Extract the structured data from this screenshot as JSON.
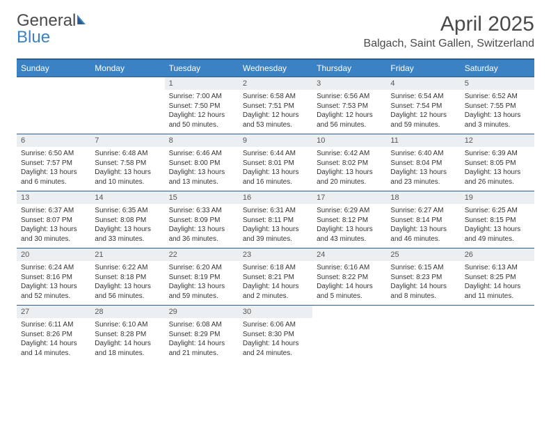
{
  "brand": {
    "part1": "General",
    "part2": "Blue"
  },
  "title": "April 2025",
  "location": "Balgach, Saint Gallen, Switzerland",
  "colors": {
    "header_bg": "#3b82c4",
    "header_text": "#ffffff",
    "border": "#2c5a8a",
    "daynum_bg": "#eceff1",
    "text": "#4a4a4a"
  },
  "fonts": {
    "title_size": 30,
    "location_size": 16,
    "dayhead_size": 12,
    "daynum_size": 11,
    "detail_size": 10
  },
  "day_names": [
    "Sunday",
    "Monday",
    "Tuesday",
    "Wednesday",
    "Thursday",
    "Friday",
    "Saturday"
  ],
  "weeks": [
    [
      {
        "day": "",
        "sunrise": "",
        "sunset": "",
        "daylight": "",
        "empty": true
      },
      {
        "day": "",
        "sunrise": "",
        "sunset": "",
        "daylight": "",
        "empty": true
      },
      {
        "day": "1",
        "sunrise": "Sunrise: 7:00 AM",
        "sunset": "Sunset: 7:50 PM",
        "daylight": "Daylight: 12 hours and 50 minutes."
      },
      {
        "day": "2",
        "sunrise": "Sunrise: 6:58 AM",
        "sunset": "Sunset: 7:51 PM",
        "daylight": "Daylight: 12 hours and 53 minutes."
      },
      {
        "day": "3",
        "sunrise": "Sunrise: 6:56 AM",
        "sunset": "Sunset: 7:53 PM",
        "daylight": "Daylight: 12 hours and 56 minutes."
      },
      {
        "day": "4",
        "sunrise": "Sunrise: 6:54 AM",
        "sunset": "Sunset: 7:54 PM",
        "daylight": "Daylight: 12 hours and 59 minutes."
      },
      {
        "day": "5",
        "sunrise": "Sunrise: 6:52 AM",
        "sunset": "Sunset: 7:55 PM",
        "daylight": "Daylight: 13 hours and 3 minutes."
      }
    ],
    [
      {
        "day": "6",
        "sunrise": "Sunrise: 6:50 AM",
        "sunset": "Sunset: 7:57 PM",
        "daylight": "Daylight: 13 hours and 6 minutes."
      },
      {
        "day": "7",
        "sunrise": "Sunrise: 6:48 AM",
        "sunset": "Sunset: 7:58 PM",
        "daylight": "Daylight: 13 hours and 10 minutes."
      },
      {
        "day": "8",
        "sunrise": "Sunrise: 6:46 AM",
        "sunset": "Sunset: 8:00 PM",
        "daylight": "Daylight: 13 hours and 13 minutes."
      },
      {
        "day": "9",
        "sunrise": "Sunrise: 6:44 AM",
        "sunset": "Sunset: 8:01 PM",
        "daylight": "Daylight: 13 hours and 16 minutes."
      },
      {
        "day": "10",
        "sunrise": "Sunrise: 6:42 AM",
        "sunset": "Sunset: 8:02 PM",
        "daylight": "Daylight: 13 hours and 20 minutes."
      },
      {
        "day": "11",
        "sunrise": "Sunrise: 6:40 AM",
        "sunset": "Sunset: 8:04 PM",
        "daylight": "Daylight: 13 hours and 23 minutes."
      },
      {
        "day": "12",
        "sunrise": "Sunrise: 6:39 AM",
        "sunset": "Sunset: 8:05 PM",
        "daylight": "Daylight: 13 hours and 26 minutes."
      }
    ],
    [
      {
        "day": "13",
        "sunrise": "Sunrise: 6:37 AM",
        "sunset": "Sunset: 8:07 PM",
        "daylight": "Daylight: 13 hours and 30 minutes."
      },
      {
        "day": "14",
        "sunrise": "Sunrise: 6:35 AM",
        "sunset": "Sunset: 8:08 PM",
        "daylight": "Daylight: 13 hours and 33 minutes."
      },
      {
        "day": "15",
        "sunrise": "Sunrise: 6:33 AM",
        "sunset": "Sunset: 8:09 PM",
        "daylight": "Daylight: 13 hours and 36 minutes."
      },
      {
        "day": "16",
        "sunrise": "Sunrise: 6:31 AM",
        "sunset": "Sunset: 8:11 PM",
        "daylight": "Daylight: 13 hours and 39 minutes."
      },
      {
        "day": "17",
        "sunrise": "Sunrise: 6:29 AM",
        "sunset": "Sunset: 8:12 PM",
        "daylight": "Daylight: 13 hours and 43 minutes."
      },
      {
        "day": "18",
        "sunrise": "Sunrise: 6:27 AM",
        "sunset": "Sunset: 8:14 PM",
        "daylight": "Daylight: 13 hours and 46 minutes."
      },
      {
        "day": "19",
        "sunrise": "Sunrise: 6:25 AM",
        "sunset": "Sunset: 8:15 PM",
        "daylight": "Daylight: 13 hours and 49 minutes."
      }
    ],
    [
      {
        "day": "20",
        "sunrise": "Sunrise: 6:24 AM",
        "sunset": "Sunset: 8:16 PM",
        "daylight": "Daylight: 13 hours and 52 minutes."
      },
      {
        "day": "21",
        "sunrise": "Sunrise: 6:22 AM",
        "sunset": "Sunset: 8:18 PM",
        "daylight": "Daylight: 13 hours and 56 minutes."
      },
      {
        "day": "22",
        "sunrise": "Sunrise: 6:20 AM",
        "sunset": "Sunset: 8:19 PM",
        "daylight": "Daylight: 13 hours and 59 minutes."
      },
      {
        "day": "23",
        "sunrise": "Sunrise: 6:18 AM",
        "sunset": "Sunset: 8:21 PM",
        "daylight": "Daylight: 14 hours and 2 minutes."
      },
      {
        "day": "24",
        "sunrise": "Sunrise: 6:16 AM",
        "sunset": "Sunset: 8:22 PM",
        "daylight": "Daylight: 14 hours and 5 minutes."
      },
      {
        "day": "25",
        "sunrise": "Sunrise: 6:15 AM",
        "sunset": "Sunset: 8:23 PM",
        "daylight": "Daylight: 14 hours and 8 minutes."
      },
      {
        "day": "26",
        "sunrise": "Sunrise: 6:13 AM",
        "sunset": "Sunset: 8:25 PM",
        "daylight": "Daylight: 14 hours and 11 minutes."
      }
    ],
    [
      {
        "day": "27",
        "sunrise": "Sunrise: 6:11 AM",
        "sunset": "Sunset: 8:26 PM",
        "daylight": "Daylight: 14 hours and 14 minutes."
      },
      {
        "day": "28",
        "sunrise": "Sunrise: 6:10 AM",
        "sunset": "Sunset: 8:28 PM",
        "daylight": "Daylight: 14 hours and 18 minutes."
      },
      {
        "day": "29",
        "sunrise": "Sunrise: 6:08 AM",
        "sunset": "Sunset: 8:29 PM",
        "daylight": "Daylight: 14 hours and 21 minutes."
      },
      {
        "day": "30",
        "sunrise": "Sunrise: 6:06 AM",
        "sunset": "Sunset: 8:30 PM",
        "daylight": "Daylight: 14 hours and 24 minutes."
      },
      {
        "day": "",
        "sunrise": "",
        "sunset": "",
        "daylight": "",
        "empty": true
      },
      {
        "day": "",
        "sunrise": "",
        "sunset": "",
        "daylight": "",
        "empty": true
      },
      {
        "day": "",
        "sunrise": "",
        "sunset": "",
        "daylight": "",
        "empty": true
      }
    ]
  ]
}
